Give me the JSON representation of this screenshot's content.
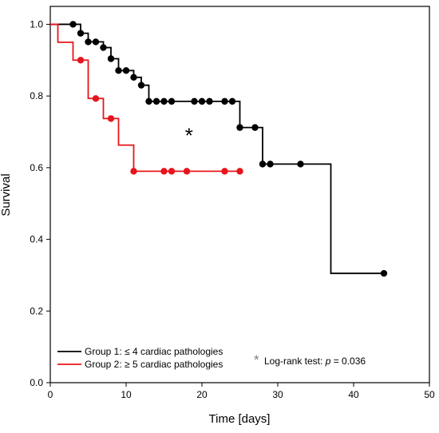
{
  "chart_data": {
    "type": "line",
    "subtype": "kaplan-meier",
    "title": "",
    "xlabel": "Time [days]",
    "ylabel": "Survival",
    "xlim": [
      0,
      50
    ],
    "ylim": [
      0,
      1.05
    ],
    "xticks": [
      "0",
      "10",
      "20",
      "30",
      "40",
      "50"
    ],
    "yticks": [
      "0.0",
      "0.2",
      "0.4",
      "0.6",
      "0.8",
      "1.0"
    ],
    "grid": false,
    "legend_position": "bottom-left",
    "series": [
      {
        "name": "Group 1: ≤ 4 cardiac pathologies",
        "color": "#000000",
        "steps": [
          [
            0,
            1.0
          ],
          [
            4,
            0.975
          ],
          [
            5,
            0.951
          ],
          [
            7,
            0.935
          ],
          [
            8,
            0.904
          ],
          [
            9,
            0.871
          ],
          [
            11,
            0.852
          ],
          [
            12,
            0.83
          ],
          [
            13,
            0.785
          ],
          [
            25,
            0.712
          ],
          [
            28,
            0.61
          ],
          [
            37,
            0.305
          ],
          [
            44,
            0.305
          ]
        ],
        "censored": [
          [
            3,
            1.0
          ],
          [
            4,
            0.975
          ],
          [
            5,
            0.951
          ],
          [
            6,
            0.951
          ],
          [
            7,
            0.935
          ],
          [
            8,
            0.904
          ],
          [
            9,
            0.871
          ],
          [
            10,
            0.871
          ],
          [
            11,
            0.852
          ],
          [
            12,
            0.83
          ],
          [
            13,
            0.785
          ],
          [
            14,
            0.785
          ],
          [
            15,
            0.785
          ],
          [
            16,
            0.785
          ],
          [
            19,
            0.785
          ],
          [
            20,
            0.785
          ],
          [
            21,
            0.785
          ],
          [
            23,
            0.785
          ],
          [
            24,
            0.785
          ],
          [
            25,
            0.712
          ],
          [
            27,
            0.712
          ],
          [
            28,
            0.61
          ],
          [
            29,
            0.61
          ],
          [
            33,
            0.61
          ],
          [
            44,
            0.305
          ]
        ]
      },
      {
        "name": "Group 2: ≥ 5 cardiac pathologies",
        "color": "#e8141b",
        "steps": [
          [
            0,
            1.0
          ],
          [
            1,
            0.95
          ],
          [
            3,
            0.9
          ],
          [
            5,
            0.793
          ],
          [
            7,
            0.737
          ],
          [
            9,
            0.663
          ],
          [
            11,
            0.59
          ],
          [
            25,
            0.59
          ]
        ],
        "censored": [
          [
            4,
            0.9
          ],
          [
            6,
            0.793
          ],
          [
            8,
            0.737
          ],
          [
            11,
            0.59
          ],
          [
            15,
            0.59
          ],
          [
            16,
            0.59
          ],
          [
            18,
            0.59
          ],
          [
            23,
            0.59
          ],
          [
            25,
            0.59
          ]
        ]
      }
    ],
    "annotations": [
      {
        "text": "*",
        "x": 18.3,
        "y": 0.69,
        "color": "#808080"
      }
    ]
  },
  "legend_note": {
    "star": "*",
    "text": "Log-rank test: ",
    "p_symbol": "p",
    "p_value": " = 0.036"
  }
}
